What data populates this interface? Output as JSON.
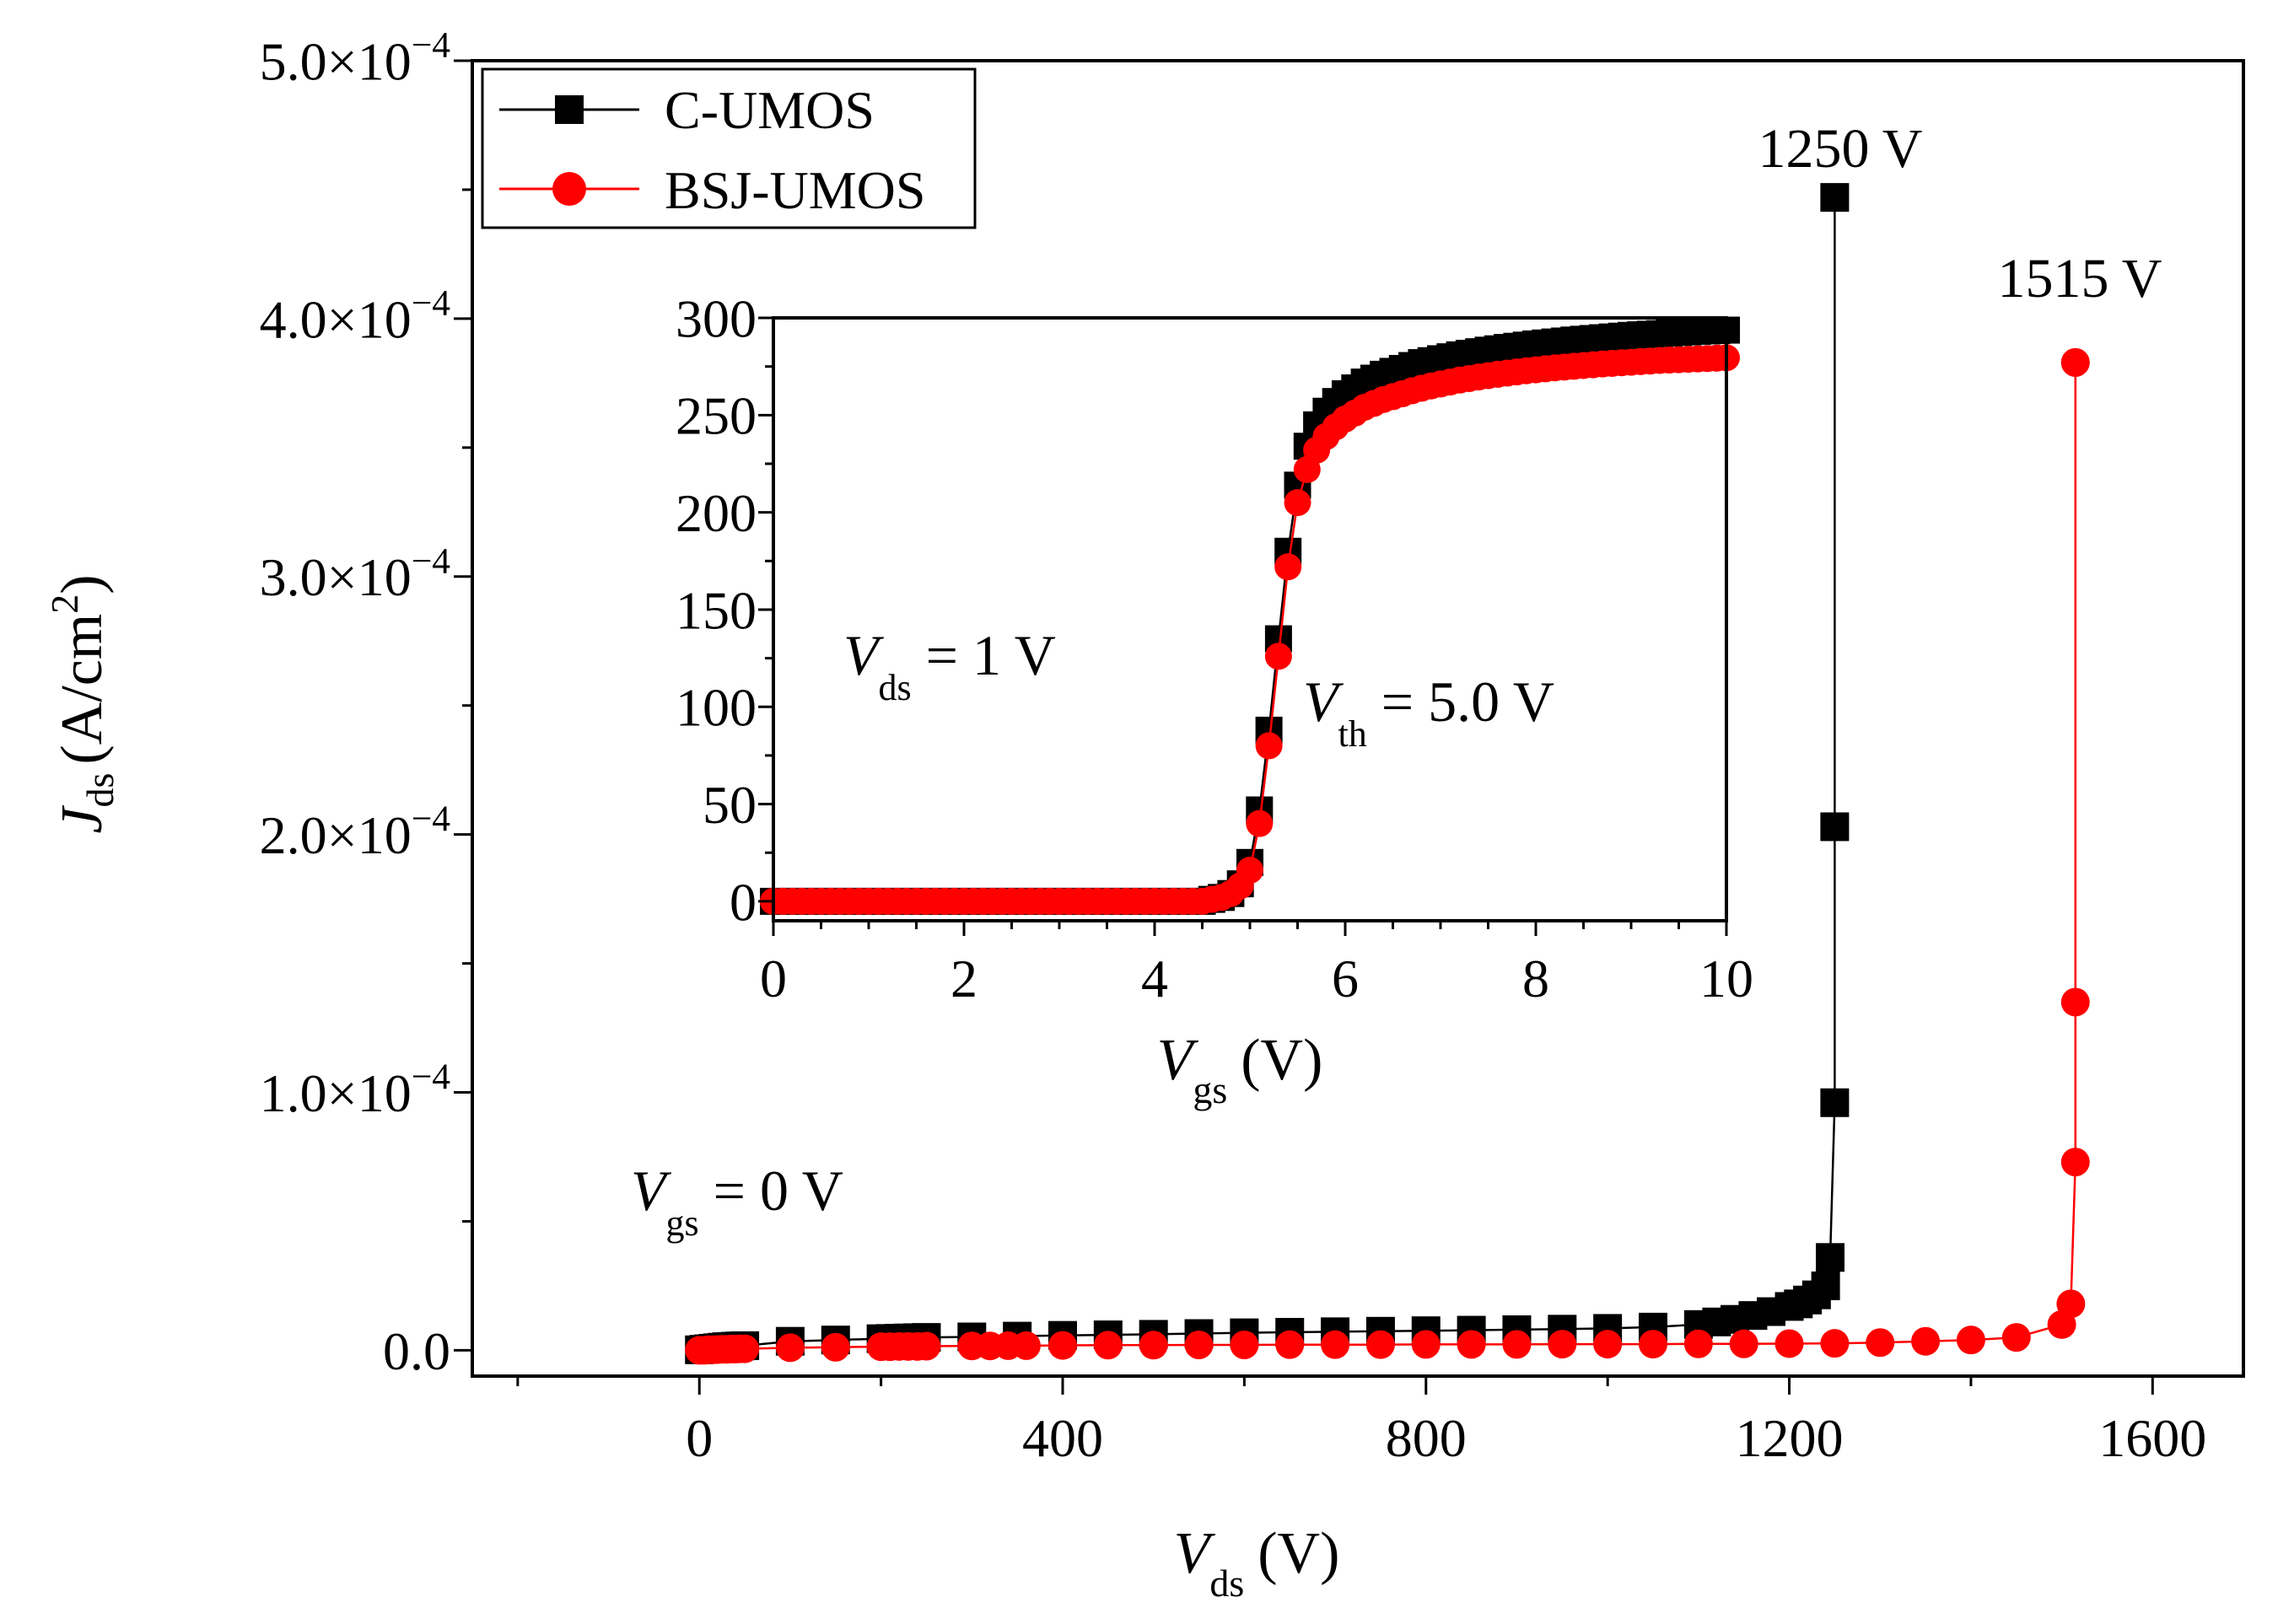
{
  "chart_data": [
    {
      "type": "line",
      "role": "main",
      "xlabel": {
        "var": "V",
        "sub": "ds",
        "unit": "(V)"
      },
      "ylabel": {
        "var": "J",
        "sub": "ds",
        "unit": "(A/cm",
        "sup": "2",
        "close": ")"
      },
      "xlim": [
        -250,
        1700
      ],
      "ylim": [
        -0.1,
        5.0
      ],
      "ylim_units": "×10^-4 A/cm²",
      "x_ticks": [
        0,
        400,
        800,
        1200,
        1600
      ],
      "x_tick_labels": [
        "0",
        "400",
        "800",
        "1200",
        "1600"
      ],
      "y_ticks": [
        0,
        1,
        2,
        3,
        4,
        5
      ],
      "y_tick_labels": [
        {
          "mant": "0.0",
          "times": "",
          "exp": ""
        },
        {
          "mant": "1.0",
          "times": "×10",
          "exp": "−4"
        },
        {
          "mant": "2.0",
          "times": "×10",
          "exp": "−4"
        },
        {
          "mant": "3.0",
          "times": "×10",
          "exp": "−4"
        },
        {
          "mant": "4.0",
          "times": "×10",
          "exp": "−4"
        },
        {
          "mant": "5.0",
          "times": "×10",
          "exp": "−4"
        }
      ],
      "legend": [
        {
          "label": "C-UMOS",
          "color": "#000000",
          "marker": "square"
        },
        {
          "label": "BSJ-UMOS",
          "color": "#ff0000",
          "marker": "circle"
        }
      ],
      "legend_position": "top-left",
      "series": [
        {
          "name": "C-UMOS",
          "color": "#000000",
          "marker": "square",
          "x": [
            0,
            5,
            10,
            15,
            20,
            25,
            30,
            35,
            40,
            45,
            50,
            100,
            150,
            200,
            210,
            220,
            230,
            240,
            250,
            300,
            350,
            400,
            450,
            500,
            550,
            600,
            650,
            700,
            750,
            800,
            850,
            900,
            950,
            1000,
            1050,
            1100,
            1120,
            1140,
            1160,
            1180,
            1200,
            1210,
            1220,
            1230,
            1240,
            1245,
            1250,
            1250,
            1250
          ],
          "y": [
            0.002,
            0.004,
            0.006,
            0.008,
            0.01,
            0.012,
            0.014,
            0.015,
            0.016,
            0.017,
            0.018,
            0.035,
            0.04,
            0.045,
            0.046,
            0.047,
            0.048,
            0.049,
            0.05,
            0.052,
            0.055,
            0.058,
            0.06,
            0.062,
            0.065,
            0.068,
            0.07,
            0.072,
            0.074,
            0.076,
            0.078,
            0.08,
            0.082,
            0.085,
            0.09,
            0.1,
            0.11,
            0.12,
            0.135,
            0.15,
            0.17,
            0.18,
            0.195,
            0.215,
            0.25,
            0.36,
            0.96,
            2.03,
            4.47
          ]
        },
        {
          "name": "BSJ-UMOS",
          "color": "#ff0000",
          "marker": "circle",
          "x": [
            0,
            5,
            10,
            15,
            20,
            25,
            30,
            35,
            40,
            45,
            50,
            100,
            150,
            200,
            210,
            220,
            230,
            240,
            250,
            300,
            320,
            340,
            360,
            400,
            450,
            500,
            550,
            600,
            650,
            700,
            750,
            800,
            850,
            900,
            950,
            1000,
            1050,
            1100,
            1150,
            1200,
            1250,
            1300,
            1350,
            1400,
            1450,
            1500,
            1510,
            1515,
            1515,
            1515,
            1515
          ],
          "y": [
            0.0,
            0.0,
            0.002,
            0.002,
            0.003,
            0.004,
            0.004,
            0.005,
            0.005,
            0.006,
            0.006,
            0.01,
            0.012,
            0.014,
            0.014,
            0.015,
            0.015,
            0.015,
            0.016,
            0.017,
            0.017,
            0.018,
            0.018,
            0.019,
            0.02,
            0.02,
            0.021,
            0.021,
            0.022,
            0.022,
            0.022,
            0.023,
            0.023,
            0.023,
            0.024,
            0.024,
            0.024,
            0.025,
            0.025,
            0.026,
            0.027,
            0.03,
            0.035,
            0.04,
            0.05,
            0.1,
            0.18,
            0.73,
            1.35,
            3.83,
            3.83
          ]
        }
      ],
      "annotations": [
        {
          "text": "1250 V",
          "x": 1250,
          "y": 4.7,
          "color": "#000000"
        },
        {
          "text": "1515 V",
          "x": 1515,
          "y": 4.2,
          "color": "#000000"
        },
        {
          "var": "V",
          "sub": "gs",
          "rest": " = 0 V",
          "x": -30,
          "y": 0.6
        }
      ]
    },
    {
      "type": "line",
      "role": "inset",
      "xlabel": {
        "var": "V",
        "sub": "gs",
        "unit": "(V)"
      },
      "xlim": [
        0,
        10
      ],
      "ylim": [
        -10,
        300
      ],
      "x_ticks": [
        0,
        2,
        4,
        6,
        8,
        10
      ],
      "x_tick_labels": [
        "0",
        "2",
        "4",
        "6",
        "8",
        "10"
      ],
      "y_ticks": [
        0,
        50,
        100,
        150,
        200,
        250,
        300
      ],
      "y_tick_labels": [
        "0",
        "50",
        "100",
        "150",
        "200",
        "250",
        "300"
      ],
      "series": [
        {
          "name": "C-UMOS",
          "color": "#000000",
          "marker": "square",
          "x": [
            0.0,
            0.1,
            0.2,
            0.3,
            0.4,
            0.5,
            0.6,
            0.7,
            0.8,
            0.9,
            1.0,
            1.1,
            1.2,
            1.3,
            1.4,
            1.5,
            1.6,
            1.7,
            1.8,
            1.9,
            2.0,
            2.1,
            2.2,
            2.3,
            2.4,
            2.5,
            2.6,
            2.7,
            2.8,
            2.9,
            3.0,
            3.1,
            3.2,
            3.3,
            3.4,
            3.5,
            3.6,
            3.7,
            3.8,
            3.9,
            4.0,
            4.1,
            4.2,
            4.3,
            4.4,
            4.5,
            4.6,
            4.7,
            4.8,
            4.9,
            5.0,
            5.1,
            5.2,
            5.3,
            5.4,
            5.5,
            5.6,
            5.7,
            5.8,
            5.9,
            6.0,
            6.1,
            6.2,
            6.3,
            6.4,
            6.5,
            6.6,
            6.7,
            6.8,
            6.9,
            7.0,
            7.1,
            7.2,
            7.3,
            7.4,
            7.5,
            7.6,
            7.7,
            7.8,
            7.9,
            8.0,
            8.1,
            8.2,
            8.3,
            8.4,
            8.5,
            8.6,
            8.7,
            8.8,
            8.9,
            9.0,
            9.1,
            9.2,
            9.3,
            9.4,
            9.5,
            9.6,
            9.7,
            9.8,
            9.9,
            10.0
          ],
          "y": [
            0,
            0,
            0,
            0,
            0,
            0,
            0,
            0,
            0,
            0,
            0,
            0,
            0,
            0,
            0,
            0,
            0,
            0,
            0,
            0,
            0,
            0,
            0,
            0,
            0,
            0,
            0,
            0,
            0,
            0,
            0,
            0,
            0,
            0,
            0,
            0,
            0,
            0,
            0,
            0,
            0,
            0,
            0,
            0,
            0,
            0,
            1,
            2,
            4,
            9,
            20,
            47,
            88,
            135,
            180,
            214,
            234,
            245,
            252,
            257,
            261,
            264,
            267,
            269,
            271,
            272.5,
            274,
            275.5,
            277,
            278,
            279,
            280,
            281,
            281.8,
            282.6,
            283.4,
            284.1,
            284.8,
            285.4,
            286,
            286.6,
            287.1,
            287.6,
            288.1,
            288.6,
            289,
            289.4,
            289.8,
            290.2,
            290.6,
            291,
            291.3,
            291.6,
            291.9,
            292.2,
            292.5,
            292.8,
            293.1,
            293.3,
            293.5,
            293.7
          ]
        },
        {
          "name": "BSJ-UMOS",
          "color": "#ff0000",
          "marker": "circle",
          "x": [
            0.0,
            0.1,
            0.2,
            0.3,
            0.4,
            0.5,
            0.6,
            0.7,
            0.8,
            0.9,
            1.0,
            1.1,
            1.2,
            1.3,
            1.4,
            1.5,
            1.6,
            1.7,
            1.8,
            1.9,
            2.0,
            2.1,
            2.2,
            2.3,
            2.4,
            2.5,
            2.6,
            2.7,
            2.8,
            2.9,
            3.0,
            3.1,
            3.2,
            3.3,
            3.4,
            3.5,
            3.6,
            3.7,
            3.8,
            3.9,
            4.0,
            4.1,
            4.2,
            4.3,
            4.4,
            4.5,
            4.6,
            4.7,
            4.8,
            4.9,
            5.0,
            5.1,
            5.2,
            5.3,
            5.4,
            5.5,
            5.6,
            5.7,
            5.8,
            5.9,
            6.0,
            6.1,
            6.2,
            6.3,
            6.4,
            6.5,
            6.6,
            6.7,
            6.8,
            6.9,
            7.0,
            7.1,
            7.2,
            7.3,
            7.4,
            7.5,
            7.6,
            7.7,
            7.8,
            7.9,
            8.0,
            8.1,
            8.2,
            8.3,
            8.4,
            8.5,
            8.6,
            8.7,
            8.8,
            8.9,
            9.0,
            9.1,
            9.2,
            9.3,
            9.4,
            9.5,
            9.6,
            9.7,
            9.8,
            9.9,
            10.0
          ],
          "y": [
            0,
            0,
            0,
            0,
            0,
            0,
            0,
            0,
            0,
            0,
            0,
            0,
            0,
            0,
            0,
            0,
            0,
            0,
            0,
            0,
            0,
            0,
            0,
            0,
            0,
            0,
            0,
            0,
            0,
            0,
            0,
            0,
            0,
            0,
            0,
            0,
            0,
            0,
            0,
            0,
            0,
            0,
            0,
            0,
            0,
            0,
            1,
            2,
            4,
            8,
            16,
            40,
            80,
            126,
            172,
            205,
            222,
            232,
            239,
            244,
            248,
            251,
            254,
            256,
            258,
            259.5,
            261,
            262.5,
            263.8,
            265,
            266,
            267,
            268,
            268.8,
            269.6,
            270.3,
            271,
            271.6,
            272.2,
            272.8,
            273.3,
            273.8,
            274.3,
            274.7,
            275.1,
            275.5,
            275.9,
            276.3,
            276.6,
            276.9,
            277.2,
            277.5,
            277.8,
            278.1,
            278.3,
            278.5,
            278.7,
            278.9,
            279.1,
            279.3,
            279.5
          ]
        }
      ],
      "annotations": [
        {
          "var": "V",
          "sub": "ds",
          "rest": " = 1 V",
          "x": 0.8,
          "y": 125
        },
        {
          "var": "V",
          "sub": "th",
          "rest": " = 5.0 V",
          "x": 5.55,
          "y": 102
        }
      ]
    }
  ]
}
